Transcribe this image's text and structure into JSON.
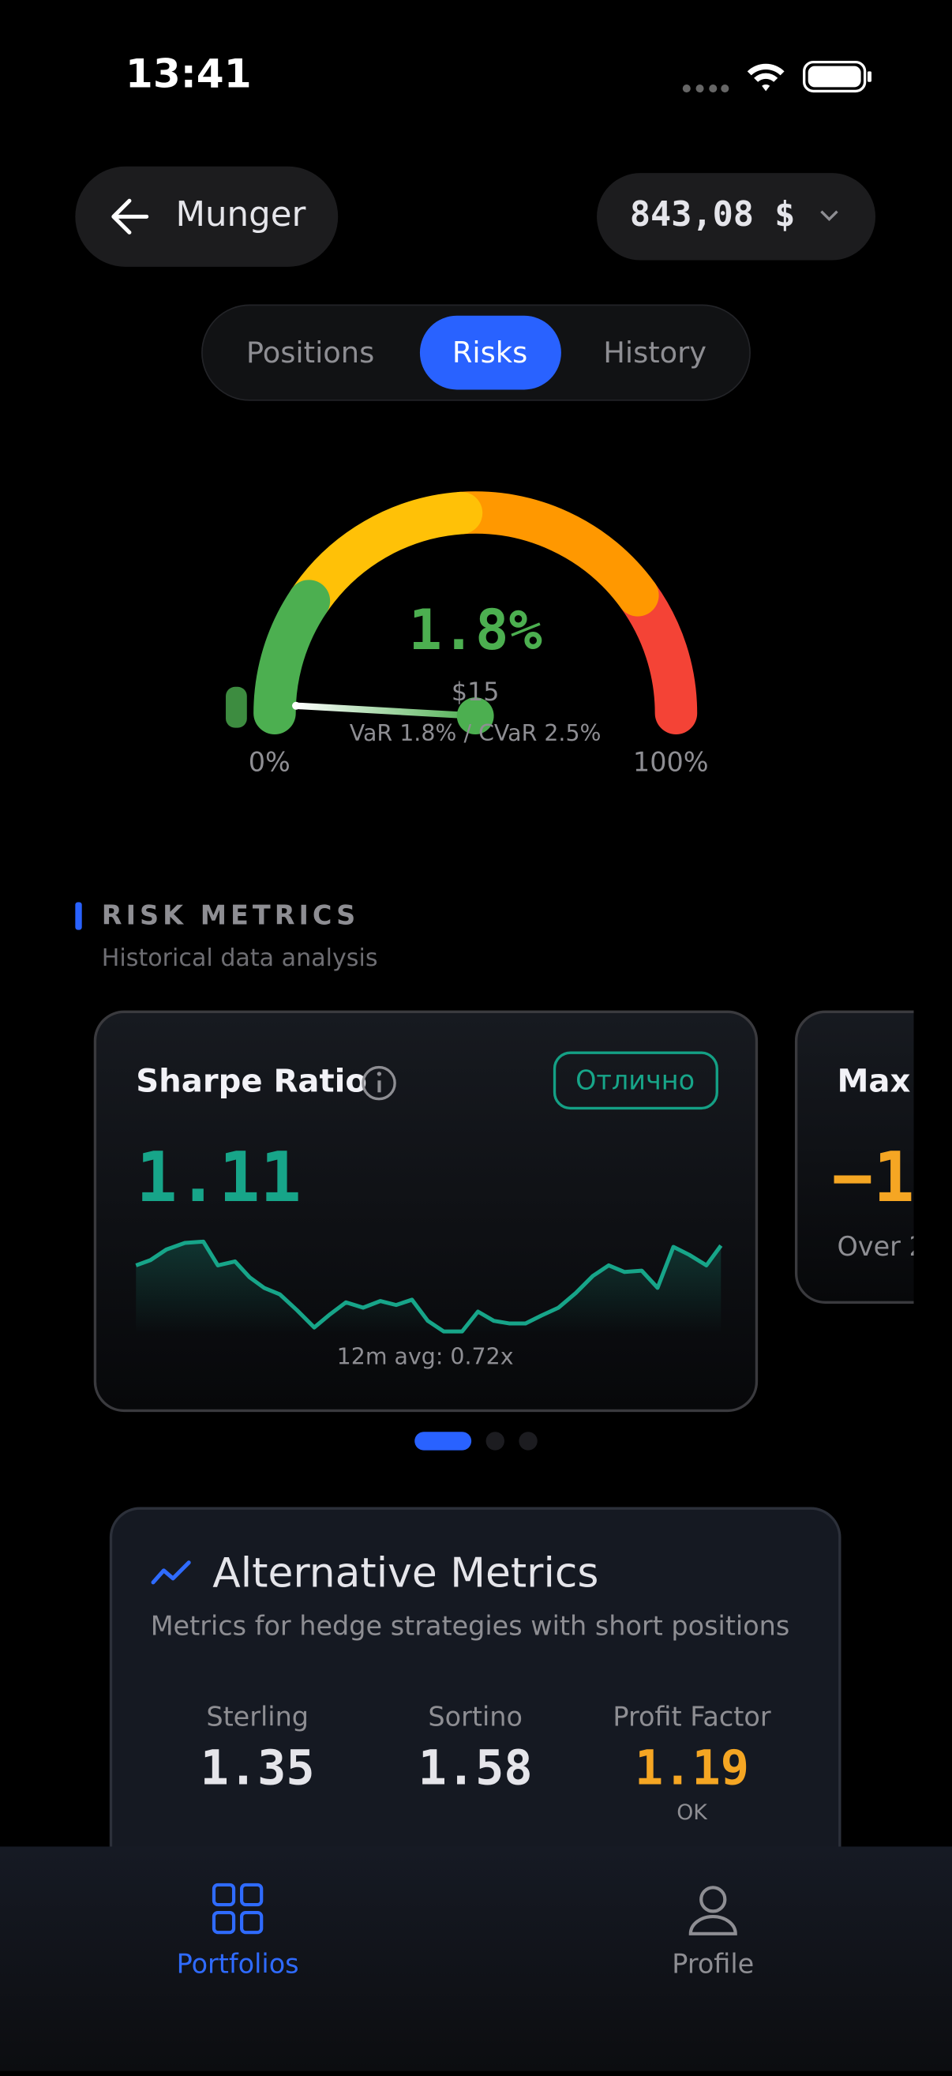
{
  "status_bar": {
    "time": "13:41"
  },
  "header": {
    "back_label": "Munger",
    "balance": "843,08 $"
  },
  "tabs": [
    "Positions",
    "Risks",
    "History"
  ],
  "gauge": {
    "value": 1.8,
    "value_label": "1.8%",
    "amount": "$15",
    "caption": "VaR 1.8% / CVaR 2.5%",
    "min": {
      "value": 0,
      "label": "0%"
    },
    "max": {
      "value": 100,
      "label": "100%"
    }
  },
  "section": {
    "title": "RISK METRICS",
    "subtitle": "Historical data analysis"
  },
  "cards": [
    {
      "title": "Sharpe Ratio",
      "badge": "Отлично",
      "value": "1.11",
      "caption": "12m avg: 0.72x"
    },
    {
      "title": "Max",
      "value": "−1",
      "caption": "Over 2"
    }
  ],
  "alternative": {
    "title": "Alternative Metrics",
    "subtitle": "Metrics for hedge strategies with short positions",
    "metrics": [
      {
        "label": "Sterling",
        "value": "1.35"
      },
      {
        "label": "Sortino",
        "value": "1.58"
      },
      {
        "label": "Profit Factor",
        "value": "1.19",
        "status": "OK"
      }
    ]
  },
  "nav": [
    "Portfolios",
    "Profile"
  ]
}
